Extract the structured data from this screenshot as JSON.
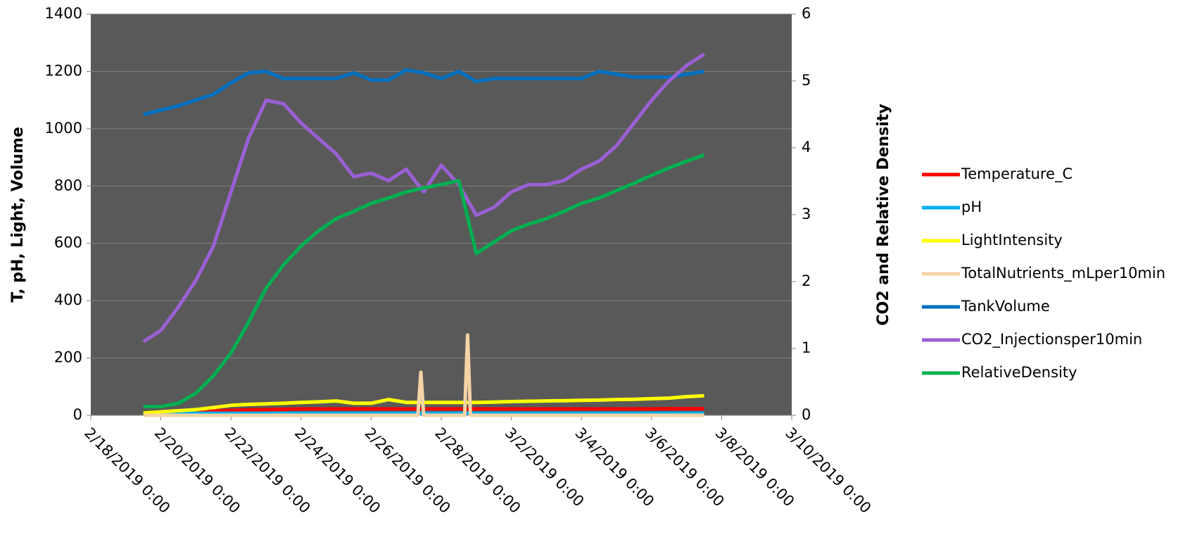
{
  "chart_data": {
    "type": "line",
    "ylabel": "T, pH, Light, Volume",
    "y2label": "CO2 and Relative Density",
    "x": [
      "2019-02-19T12:00",
      "2019-02-20T00:00",
      "2019-02-20T12:00",
      "2019-02-21T00:00",
      "2019-02-21T12:00",
      "2019-02-22T00:00",
      "2019-02-22T12:00",
      "2019-02-23T00:00",
      "2019-02-23T12:00",
      "2019-02-24T00:00",
      "2019-02-24T12:00",
      "2019-02-25T00:00",
      "2019-02-25T12:00",
      "2019-02-26T00:00",
      "2019-02-26T12:00",
      "2019-02-27T00:00",
      "2019-02-27T12:00",
      "2019-02-28T00:00",
      "2019-02-28T12:00",
      "2019-03-01T00:00",
      "2019-03-01T12:00",
      "2019-03-02T00:00",
      "2019-03-02T12:00",
      "2019-03-03T00:00",
      "2019-03-03T12:00",
      "2019-03-04T00:00",
      "2019-03-04T12:00",
      "2019-03-05T00:00",
      "2019-03-05T12:00",
      "2019-03-06T00:00",
      "2019-03-06T12:00",
      "2019-03-07T00:00",
      "2019-03-07T12:00"
    ],
    "xlim": [
      "2019-02-18T00:00",
      "2019-03-10T00:00"
    ],
    "xticks": [
      {
        "value": "2019-02-18T00:00",
        "label": "2/18/2019 0:00"
      },
      {
        "value": "2019-02-20T00:00",
        "label": "2/20/2019 0:00"
      },
      {
        "value": "2019-02-22T00:00",
        "label": "2/22/2019 0:00"
      },
      {
        "value": "2019-02-24T00:00",
        "label": "2/24/2019 0:00"
      },
      {
        "value": "2019-02-26T00:00",
        "label": "2/26/2019 0:00"
      },
      {
        "value": "2019-02-28T00:00",
        "label": "2/28/2019 0:00"
      },
      {
        "value": "2019-03-02T00:00",
        "label": "3/2/2019 0:00"
      },
      {
        "value": "2019-03-04T00:00",
        "label": "3/4/2019 0:00"
      },
      {
        "value": "2019-03-06T00:00",
        "label": "3/6/2019 0:00"
      },
      {
        "value": "2019-03-08T00:00",
        "label": "3/8/2019 0:00"
      },
      {
        "value": "2019-03-10T00:00",
        "label": "3/10/2019 0:00"
      }
    ],
    "ylim": [
      0,
      1400
    ],
    "yticks": [
      0,
      200,
      400,
      600,
      800,
      1000,
      1200,
      1400
    ],
    "y2lim": [
      0,
      6
    ],
    "y2ticks": [
      0,
      1,
      2,
      3,
      4,
      5,
      6
    ],
    "grid": true,
    "legend": "right",
    "series": [
      {
        "name": "Temperature_C",
        "color": "#ff0000",
        "values": [
          5,
          8,
          10,
          12,
          15,
          17,
          19,
          20,
          21,
          22,
          22,
          22,
          22,
          22,
          22,
          22,
          22,
          22,
          22,
          22,
          22,
          22,
          22,
          22,
          22,
          22,
          22,
          22,
          22,
          22,
          23,
          23,
          23
        ]
      },
      {
        "name": "pH",
        "color": "#00b0f0",
        "values": [
          7,
          7,
          7,
          7,
          7,
          7,
          7,
          7,
          7,
          7,
          7,
          7,
          7,
          7,
          7,
          7,
          7,
          7,
          7,
          7,
          7,
          7,
          7,
          7,
          7,
          7,
          7,
          7,
          7,
          7,
          7,
          7,
          7
        ]
      },
      {
        "name": "LightIntensity",
        "color": "#ffff00",
        "values": [
          8,
          12,
          16,
          20,
          27,
          35,
          38,
          40,
          42,
          45,
          47,
          50,
          42,
          42,
          55,
          45,
          45,
          45,
          45,
          45,
          46,
          48,
          49,
          50,
          51,
          52,
          53,
          55,
          56,
          58,
          60,
          65,
          68
        ]
      },
      {
        "name": "TotalNutrients_mLper10min",
        "color": "#f5d3a6",
        "x": [
          "2019-02-19T12:00",
          "2019-02-27T08:00",
          "2019-02-27T10:00",
          "2019-02-27T12:00",
          "2019-02-28T16:00",
          "2019-02-28T18:00",
          "2019-02-28T20:00",
          "2019-03-07T12:00"
        ],
        "values": [
          0,
          0,
          150,
          0,
          0,
          280,
          0,
          0
        ]
      },
      {
        "name": "TankVolume",
        "color": "#0070c0",
        "values": [
          1050,
          1065,
          1080,
          1100,
          1120,
          1160,
          1195,
          1200,
          1175,
          1175,
          1175,
          1175,
          1195,
          1170,
          1170,
          1205,
          1195,
          1175,
          1200,
          1165,
          1175,
          1175,
          1175,
          1175,
          1175,
          1175,
          1200,
          1190,
          1180,
          1180,
          1180,
          1190,
          1200
        ]
      },
      {
        "name": "CO2_Injectionsper10min",
        "color": "#9b5fd4",
        "axis": "y2",
        "values": [
          1.1,
          1.27,
          1.62,
          2.02,
          2.53,
          3.34,
          4.14,
          4.71,
          4.66,
          4.37,
          4.14,
          3.91,
          3.57,
          3.62,
          3.51,
          3.68,
          3.34,
          3.74,
          3.45,
          2.99,
          3.11,
          3.34,
          3.45,
          3.45,
          3.51,
          3.68,
          3.8,
          4.03,
          4.37,
          4.71,
          5.0,
          5.23,
          5.4
        ]
      },
      {
        "name": "RelativeDensity",
        "color": "#00b050",
        "axis": "y2",
        "values": [
          0.13,
          0.13,
          0.18,
          0.33,
          0.59,
          0.93,
          1.39,
          1.9,
          2.25,
          2.53,
          2.76,
          2.94,
          3.05,
          3.17,
          3.25,
          3.34,
          3.4,
          3.45,
          3.51,
          2.42,
          2.59,
          2.76,
          2.86,
          2.94,
          3.05,
          3.17,
          3.25,
          3.36,
          3.47,
          3.59,
          3.7,
          3.8,
          3.89
        ]
      }
    ]
  }
}
